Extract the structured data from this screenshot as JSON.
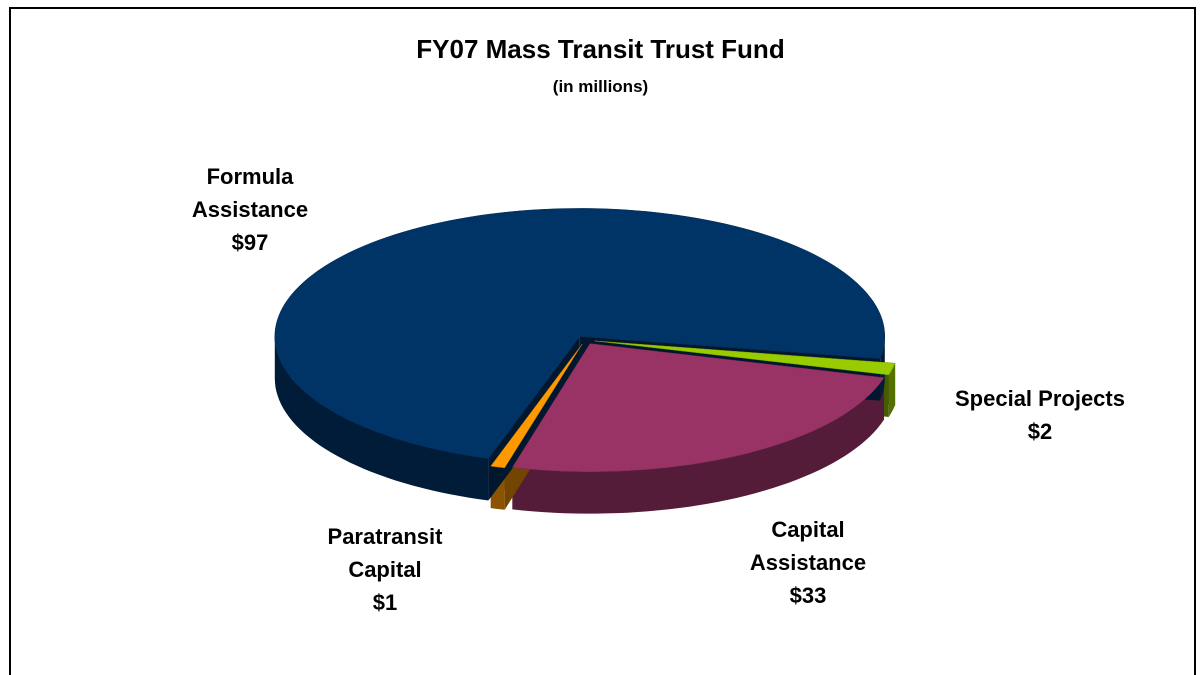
{
  "chart_data": {
    "type": "pie",
    "title": "FY07 Mass Transit Trust Fund",
    "subtitle": "(in millions)",
    "categories": [
      "Special Projects",
      "Capital Assistance",
      "Paratransit Capital",
      "Formula Assistance"
    ],
    "values": [
      2,
      33,
      1,
      97
    ],
    "value_labels": [
      "$2",
      "$33",
      "$1",
      "$97"
    ],
    "colors": [
      "#99cc00",
      "#993366",
      "#ff9900",
      "#003366"
    ]
  }
}
